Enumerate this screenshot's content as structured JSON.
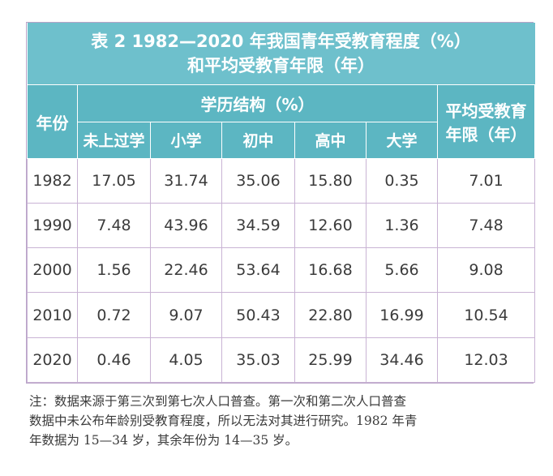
{
  "table": {
    "title_line1": "表 2 1982—2020 年我国青年受教育程度（%）",
    "title_line2": "和平均受教育年限（年）",
    "header": {
      "year": "年份",
      "education_group": "学历结构（%）",
      "avg_years": "平均受教育年限（年）",
      "avg_years_line1": "平均受教育",
      "avg_years_line2": "年限（年）",
      "columns": [
        "未上过学",
        "小学",
        "初中",
        "高中",
        "大学"
      ]
    },
    "rows": [
      {
        "year": "1982",
        "values": [
          "17.05",
          "31.74",
          "35.06",
          "15.80",
          "0.35"
        ],
        "avg": "7.01"
      },
      {
        "year": "1990",
        "values": [
          "7.48",
          "43.96",
          "34.59",
          "12.60",
          "1.36"
        ],
        "avg": "7.48"
      },
      {
        "year": "2000",
        "values": [
          "1.56",
          "22.46",
          "53.64",
          "16.68",
          "5.66"
        ],
        "avg": "9.08"
      },
      {
        "year": "2010",
        "values": [
          "0.72",
          "9.07",
          "50.43",
          "22.80",
          "16.99"
        ],
        "avg": "10.54"
      },
      {
        "year": "2020",
        "values": [
          "0.46",
          "4.05",
          "35.03",
          "25.99",
          "34.46"
        ],
        "avg": "12.03"
      }
    ]
  },
  "note": {
    "line1": "注：数据来源于第三次到第七次人口普查。第一次和第二次人口普查",
    "line2": "数据中未公布年龄别受教育程度，所以无法对其进行研究。1982 年青",
    "line3": "年数据为 15—34 岁，其余年份为 14—35 岁。"
  },
  "colors": {
    "title_bg": "#6ec0cc",
    "header_bg": "#5cb6c2",
    "grid_border": "#c9b3d4"
  }
}
